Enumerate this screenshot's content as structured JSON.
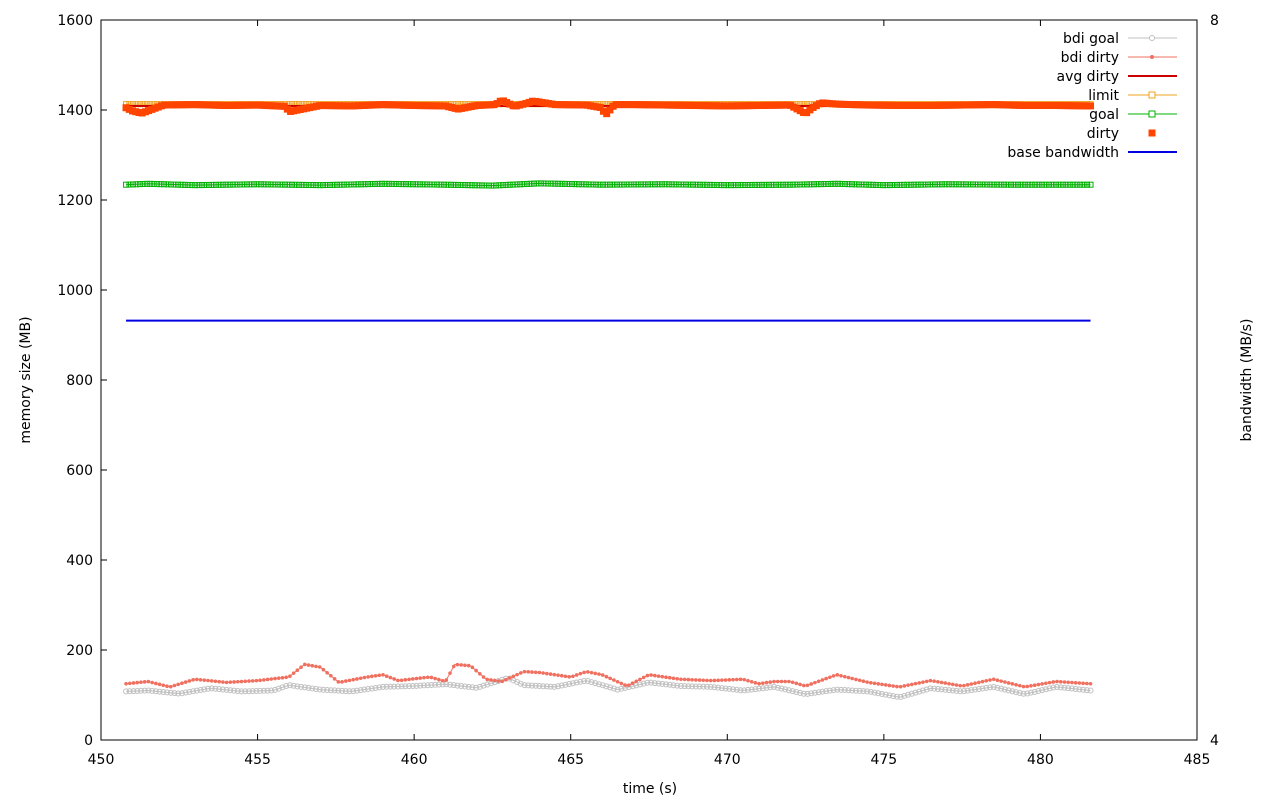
{
  "chart_data": {
    "type": "line",
    "title": "",
    "xlabel": "time (s)",
    "ylabel": "memory size (MB)",
    "y2label": "bandwidth (MB/s)",
    "xlim": [
      450,
      485
    ],
    "ylim": [
      0,
      1600
    ],
    "y2lim": [
      4,
      8
    ],
    "x_ticks": [
      "450",
      "455",
      "460",
      "465",
      "470",
      "475",
      "480",
      "485"
    ],
    "y_ticks": [
      "0",
      "200",
      "400",
      "600",
      "800",
      "1000",
      "1200",
      "1400",
      "1600"
    ],
    "y2_ticks": [
      "4",
      "8"
    ],
    "grid": false,
    "legend_position": "top-right",
    "x_range": [
      450.8,
      481.6
    ],
    "series": [
      {
        "name": "bdi goal",
        "color": "#c0c0c0",
        "style": "line-circle",
        "x": [
          450.8,
          451.5,
          452.5,
          453.5,
          454.5,
          455.5,
          456.0,
          457.0,
          458.0,
          459.0,
          460.0,
          461.0,
          462.0,
          463.0,
          463.5,
          464.5,
          465.5,
          466.5,
          467.5,
          468.5,
          469.5,
          470.5,
          471.5,
          472.5,
          473.5,
          474.5,
          475.5,
          476.5,
          477.5,
          478.5,
          479.5,
          480.5,
          481.6
        ],
        "y": [
          108,
          110,
          103,
          115,
          108,
          110,
          122,
          112,
          108,
          118,
          120,
          124,
          116,
          138,
          122,
          118,
          132,
          112,
          128,
          120,
          118,
          110,
          118,
          102,
          112,
          108,
          95,
          115,
          108,
          118,
          102,
          118,
          110
        ]
      },
      {
        "name": "bdi dirty",
        "color": "#f07060",
        "style": "line-point",
        "x": [
          450.8,
          451.5,
          452.2,
          453.0,
          454.0,
          455.0,
          456.0,
          456.5,
          457.0,
          457.6,
          458.5,
          459.0,
          459.5,
          460.5,
          461.0,
          461.3,
          461.8,
          462.3,
          462.8,
          463.5,
          464.0,
          465.0,
          465.5,
          466.0,
          466.8,
          467.5,
          468.5,
          469.5,
          470.5,
          471.0,
          471.5,
          472.0,
          472.5,
          473.5,
          474.5,
          475.5,
          476.5,
          477.5,
          478.5,
          479.5,
          480.5,
          481.6
        ],
        "y": [
          125,
          130,
          118,
          135,
          128,
          132,
          140,
          168,
          162,
          128,
          140,
          145,
          132,
          140,
          130,
          168,
          165,
          135,
          130,
          152,
          150,
          140,
          152,
          145,
          120,
          145,
          135,
          132,
          135,
          125,
          130,
          130,
          120,
          145,
          128,
          118,
          132,
          120,
          135,
          118,
          130,
          125
        ]
      },
      {
        "name": "avg dirty",
        "color": "#cc0000",
        "style": "line",
        "x": [
          450.8,
          481.6
        ],
        "y": [
          1409,
          1409
        ]
      },
      {
        "name": "limit",
        "color": "#f0a020",
        "style": "line-square",
        "x": [
          450.8,
          481.6
        ],
        "y": [
          1413,
          1413
        ]
      },
      {
        "name": "goal",
        "color": "#00b000",
        "style": "line-square",
        "x": [
          450.8,
          451.5,
          453.0,
          455.0,
          457.0,
          459.0,
          461.0,
          462.5,
          464.0,
          466.0,
          468.0,
          470.0,
          472.0,
          473.5,
          475.0,
          477.0,
          479.0,
          481.6
        ],
        "y": [
          1234,
          1236,
          1233,
          1235,
          1233,
          1236,
          1234,
          1232,
          1237,
          1234,
          1235,
          1233,
          1234,
          1236,
          1233,
          1235,
          1234,
          1234
        ]
      },
      {
        "name": "dirty",
        "color": "#ff4400",
        "style": "square",
        "x": [
          450.8,
          451.0,
          451.3,
          452.0,
          453.0,
          454.0,
          455.0,
          455.9,
          456.0,
          457.0,
          458.0,
          459.0,
          460.0,
          461.0,
          461.4,
          462.0,
          462.6,
          462.8,
          463.2,
          463.6,
          463.8,
          464.5,
          465.5,
          466.0,
          466.1,
          466.4,
          467.0,
          468.0,
          469.0,
          470.0,
          471.0,
          472.0,
          472.5,
          472.7,
          473.0,
          473.5,
          474.5,
          475.5,
          476.5,
          477.5,
          478.5,
          479.5,
          480.5,
          481.6
        ],
        "y": [
          1405,
          1398,
          1393,
          1411,
          1412,
          1410,
          1411,
          1408,
          1396,
          1410,
          1409,
          1412,
          1410,
          1409,
          1402,
          1410,
          1412,
          1422,
          1408,
          1415,
          1420,
          1412,
          1411,
          1405,
          1388,
          1412,
          1412,
          1411,
          1410,
          1409,
          1410,
          1411,
          1392,
          1404,
          1416,
          1413,
          1411,
          1410,
          1410,
          1411,
          1412,
          1410,
          1410,
          1409
        ]
      },
      {
        "name": "base bandwidth",
        "color": "#0000e0",
        "style": "line",
        "axis": "y2",
        "x": [
          450.8,
          481.6
        ],
        "y": [
          6.33,
          6.33
        ]
      }
    ]
  }
}
